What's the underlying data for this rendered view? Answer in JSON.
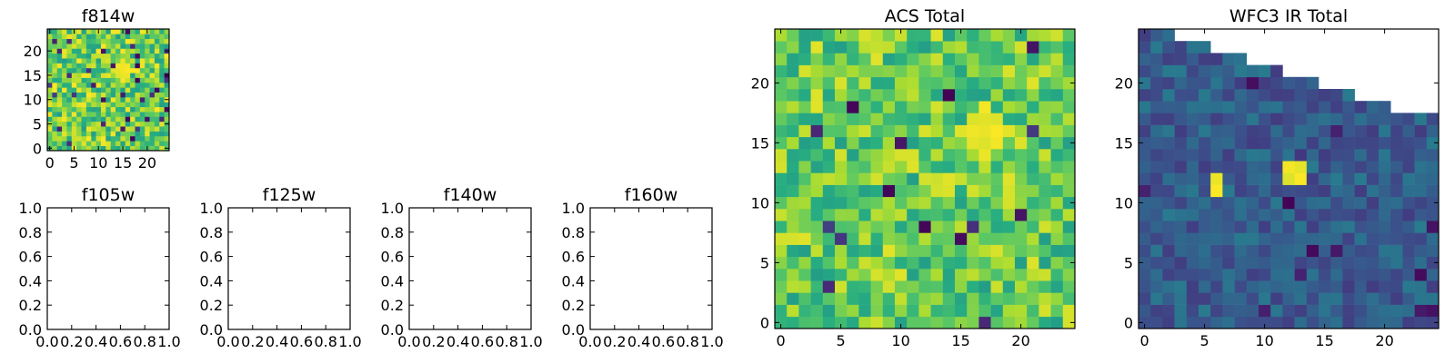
{
  "colormap": "viridis",
  "chart_data": [
    {
      "id": "f814w",
      "type": "heatmap",
      "title": "f814w",
      "grid_size": 25,
      "xlim": [
        -0.5,
        24.5
      ],
      "ylim": [
        -0.5,
        24.5
      ],
      "x_ticks": [
        0,
        5,
        10,
        15,
        20
      ],
      "y_ticks": [
        0,
        5,
        10,
        15,
        20
      ],
      "value_range": [
        0,
        1
      ],
      "seed": 7,
      "base_value": 0.78,
      "noise": 0.22,
      "dark_fraction": 0.05,
      "hotspots": [
        {
          "x": 15,
          "y": 16,
          "r": 2,
          "value": 1.0
        }
      ],
      "masked": false
    },
    {
      "id": "f105w",
      "type": "empty",
      "title": "f105w",
      "xlim": [
        0,
        1
      ],
      "ylim": [
        0,
        1
      ],
      "x_ticks": [
        "0.0",
        "0.2",
        "0.4",
        "0.6",
        "0.8",
        "1.0"
      ],
      "y_ticks": [
        "0.0",
        "0.2",
        "0.4",
        "0.6",
        "0.8",
        "1.0"
      ]
    },
    {
      "id": "f125w",
      "type": "empty",
      "title": "f125w",
      "xlim": [
        0,
        1
      ],
      "ylim": [
        0,
        1
      ],
      "x_ticks": [
        "0.0",
        "0.2",
        "0.4",
        "0.6",
        "0.8",
        "1.0"
      ],
      "y_ticks": [
        "0.0",
        "0.2",
        "0.4",
        "0.6",
        "0.8",
        "1.0"
      ]
    },
    {
      "id": "f140w",
      "type": "empty",
      "title": "f140w",
      "xlim": [
        0,
        1
      ],
      "ylim": [
        0,
        1
      ],
      "x_ticks": [
        "0.0",
        "0.2",
        "0.4",
        "0.6",
        "0.8",
        "1.0"
      ],
      "y_ticks": [
        "0.0",
        "0.2",
        "0.4",
        "0.6",
        "0.8",
        "1.0"
      ]
    },
    {
      "id": "f160w",
      "type": "empty",
      "title": "f160w",
      "xlim": [
        0,
        1
      ],
      "ylim": [
        0,
        1
      ],
      "x_ticks": [
        "0.0",
        "0.2",
        "0.4",
        "0.6",
        "0.8",
        "1.0"
      ],
      "y_ticks": [
        "0.0",
        "0.2",
        "0.4",
        "0.6",
        "0.8",
        "1.0"
      ]
    },
    {
      "id": "acs_total",
      "type": "heatmap",
      "title": "ACS Total",
      "grid_size": 25,
      "xlim": [
        -0.5,
        24.5
      ],
      "ylim": [
        -0.5,
        24.5
      ],
      "x_ticks": [
        0,
        5,
        10,
        15,
        20
      ],
      "y_ticks": [
        0,
        5,
        10,
        15,
        20
      ],
      "value_range": [
        0,
        1
      ],
      "seed": 21,
      "base_value": 0.76,
      "noise": 0.2,
      "dark_fraction": 0.03,
      "hotspots": [
        {
          "x": 17,
          "y": 16,
          "r": 2,
          "value": 1.0
        },
        {
          "x": 8,
          "y": 23,
          "r": 1,
          "value": 0.95
        }
      ],
      "masked": false
    },
    {
      "id": "wfc3_ir_total",
      "type": "heatmap",
      "title": "WFC3 IR Total",
      "grid_size": 25,
      "xlim": [
        -0.5,
        24.5
      ],
      "ylim": [
        -0.5,
        24.5
      ],
      "x_ticks": [
        0,
        5,
        10,
        15,
        20
      ],
      "y_ticks": [
        0,
        5,
        10,
        15,
        20
      ],
      "value_range": [
        0,
        1
      ],
      "seed": 43,
      "base_value": 0.3,
      "noise": 0.12,
      "dark_fraction": 0.03,
      "hotspots": [
        {
          "x": 12.5,
          "y": 12.5,
          "r": 1,
          "value": 1.0
        },
        {
          "x": 6,
          "y": 11.5,
          "r": 0.7,
          "value": 1.0
        }
      ],
      "masked": true,
      "mask_top_rows_by_column": [
        24,
        24,
        24,
        23,
        23,
        23,
        22,
        22,
        22,
        21,
        21,
        21,
        20,
        20,
        20,
        19,
        19,
        19,
        18,
        18,
        18,
        17,
        17,
        17,
        17
      ]
    }
  ]
}
